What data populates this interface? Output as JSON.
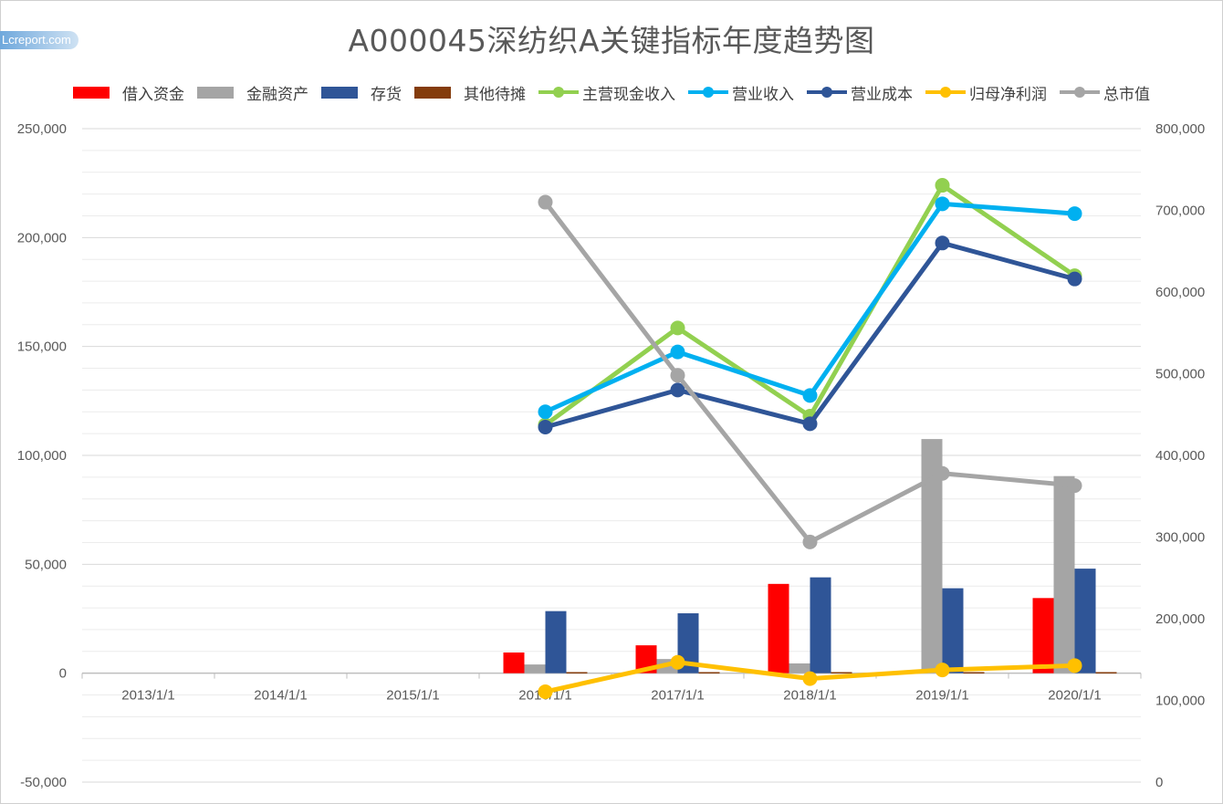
{
  "watermark": "Lcreport.com",
  "colors": {
    "borrowed_funds": "#ff0000",
    "financial_assets": "#a5a5a5",
    "inventory": "#2f5597",
    "other_amortization": "#843c0c",
    "main_cash_income": "#92d050",
    "revenue": "#00b0f0",
    "operating_cost": "#2f5597",
    "net_profit": "#ffc000",
    "market_value": "#a5a5a5",
    "grid": "#d9d9d9",
    "axis": "#bfbfbf",
    "text": "#595959"
  },
  "chart_data": {
    "type": "bar",
    "title": "A000045深纺织A关键指标年度趋势图",
    "categories": [
      "2013/1/1",
      "2014/1/1",
      "2015/1/1",
      "2016/1/1",
      "2017/1/1",
      "2018/1/1",
      "2019/1/1",
      "2020/1/1"
    ],
    "left_axis": {
      "ylim": [
        -50000,
        250000
      ],
      "ticks": [
        -50000,
        0,
        50000,
        100000,
        150000,
        200000,
        250000
      ],
      "tick_labels": [
        "-50,000",
        "0",
        "50,000",
        "100,000",
        "150,000",
        "200,000",
        "250,000"
      ]
    },
    "right_axis": {
      "ylim": [
        0,
        800000
      ],
      "ticks": [
        0,
        100000,
        200000,
        300000,
        400000,
        500000,
        600000,
        700000,
        800000
      ],
      "tick_labels": [
        "0",
        "100,000",
        "200,000",
        "300,000",
        "400,000",
        "500,000",
        "600,000",
        "700,000",
        "800,000"
      ]
    },
    "grid": true,
    "legend_position": "top",
    "bar_series": [
      {
        "name": "借入资金",
        "color_key": "borrowed_funds",
        "values": [
          null,
          null,
          null,
          9500,
          12800,
          41000,
          500,
          34500
        ]
      },
      {
        "name": "金融资产",
        "color_key": "financial_assets",
        "values": [
          null,
          null,
          null,
          4000,
          6500,
          4500,
          107500,
          90500
        ]
      },
      {
        "name": "存货",
        "color_key": "inventory",
        "values": [
          null,
          null,
          null,
          28500,
          27500,
          44000,
          39000,
          48000
        ]
      },
      {
        "name": "其他待摊",
        "color_key": "other_amortization",
        "values": [
          null,
          null,
          null,
          500,
          500,
          500,
          500,
          500
        ]
      }
    ],
    "line_series": [
      {
        "name": "主营现金收入",
        "color_key": "main_cash_income",
        "axis": "left",
        "values": [
          null,
          null,
          null,
          114000,
          158500,
          118000,
          224000,
          182500
        ]
      },
      {
        "name": "营业收入",
        "color_key": "revenue",
        "axis": "left",
        "values": [
          null,
          null,
          null,
          120000,
          147500,
          127500,
          215500,
          211000
        ]
      },
      {
        "name": "营业成本",
        "color_key": "operating_cost",
        "axis": "left",
        "values": [
          null,
          null,
          null,
          113000,
          130000,
          114500,
          197500,
          181000
        ]
      },
      {
        "name": "归母净利润",
        "color_key": "net_profit",
        "axis": "left",
        "values": [
          null,
          null,
          null,
          -8500,
          5000,
          -2500,
          1500,
          3500
        ]
      },
      {
        "name": "总市值",
        "color_key": "market_value",
        "axis": "right",
        "values": [
          null,
          null,
          null,
          710000,
          498000,
          294000,
          378000,
          363000
        ]
      }
    ]
  }
}
